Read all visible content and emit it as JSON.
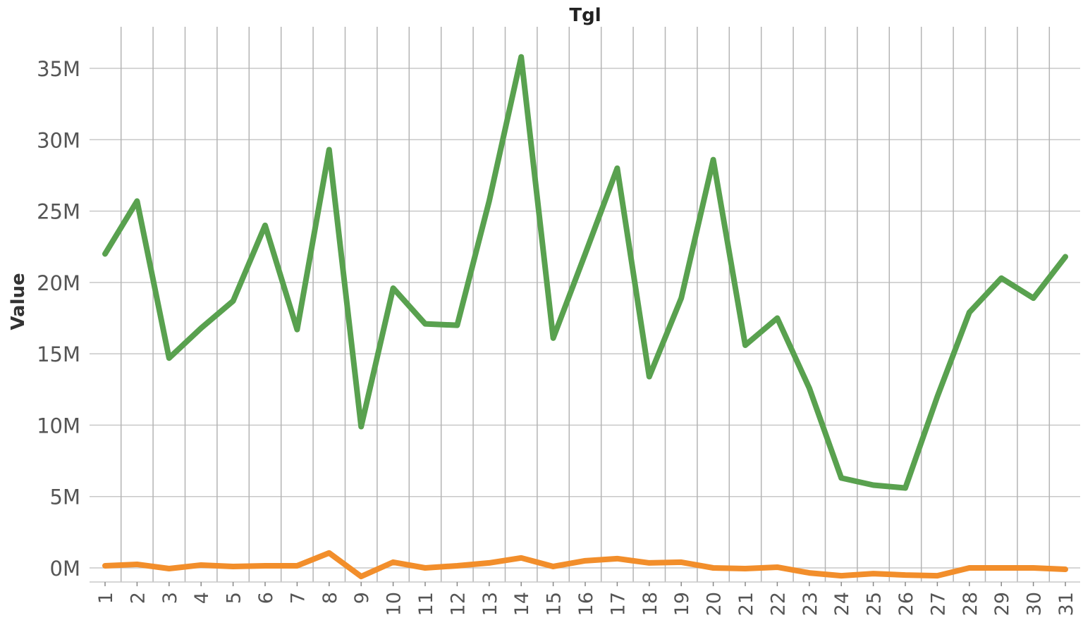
{
  "chart_data": {
    "type": "line",
    "title": "Tgl",
    "xlabel": "",
    "ylabel": "Value",
    "categories": [
      "1",
      "2",
      "3",
      "4",
      "5",
      "6",
      "7",
      "8",
      "9",
      "10",
      "11",
      "12",
      "13",
      "14",
      "15",
      "16",
      "17",
      "18",
      "19",
      "20",
      "21",
      "22",
      "23",
      "24",
      "25",
      "26",
      "27",
      "28",
      "29",
      "30",
      "31"
    ],
    "y_ticks": [
      0,
      5000000,
      10000000,
      15000000,
      20000000,
      25000000,
      30000000,
      35000000
    ],
    "y_tick_labels": [
      "0M",
      "5M",
      "10M",
      "15M",
      "20M",
      "25M",
      "30M",
      "35M"
    ],
    "ylim": [
      -800000,
      38000000
    ],
    "grid": true,
    "legend": "none",
    "series": [
      {
        "color": "#59a14f",
        "values": [
          22000000,
          25700000,
          14700000,
          16800000,
          18700000,
          24000000,
          16700000,
          29300000,
          9900000,
          19600000,
          17100000,
          17000000,
          25700000,
          35800000,
          16100000,
          22000000,
          28000000,
          13400000,
          18900000,
          28600000,
          15600000,
          17500000,
          12600000,
          6300000,
          5800000,
          5600000,
          12000000,
          17900000,
          20300000,
          18900000,
          21800000
        ]
      },
      {
        "color": "#f28e2b",
        "values": [
          150000,
          250000,
          -50000,
          200000,
          100000,
          150000,
          150000,
          1050000,
          -600000,
          400000,
          0,
          150000,
          350000,
          700000,
          100000,
          500000,
          650000,
          350000,
          400000,
          0,
          -50000,
          50000,
          -350000,
          -550000,
          -400000,
          -500000,
          -550000,
          0,
          0,
          0,
          -100000
        ]
      }
    ]
  }
}
